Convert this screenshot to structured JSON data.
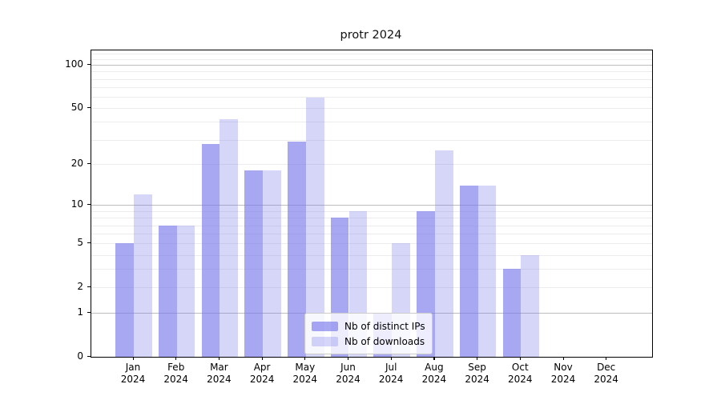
{
  "chart_data": {
    "type": "bar",
    "title": "protr 2024",
    "categories": [
      "Jan 2024",
      "Feb 2024",
      "Mar 2024",
      "Apr 2024",
      "May 2024",
      "Jun 2024",
      "Jul 2024",
      "Aug 2024",
      "Sep 2024",
      "Oct 2024",
      "Nov 2024",
      "Dec 2024"
    ],
    "x_tick_months": [
      "Jan",
      "Feb",
      "Mar",
      "Apr",
      "May",
      "Jun",
      "Jul",
      "Aug",
      "Sep",
      "Oct",
      "Nov",
      "Dec"
    ],
    "x_tick_year": "2024",
    "series": [
      {
        "name": "Nb of distinct IPs",
        "color": "rgba(120,120,235,0.65)",
        "values": [
          5,
          7,
          28,
          18,
          29,
          8,
          1,
          9,
          14,
          3,
          0,
          0
        ]
      },
      {
        "name": "Nb of downloads",
        "color": "rgba(120,120,235,0.30)",
        "values": [
          12,
          7,
          42,
          18,
          59,
          9,
          5,
          25,
          14,
          4,
          0,
          0
        ]
      }
    ],
    "y_axis": {
      "scale": "log1p",
      "tick_values": [
        100,
        50,
        20,
        10,
        5,
        2,
        1,
        0
      ],
      "tick_labels": [
        "100",
        "50",
        "20",
        "10",
        "5",
        "2",
        "1",
        "0"
      ],
      "max_value": 126,
      "major_grid_values": [
        1,
        10,
        100
      ],
      "minor_grid_values": [
        2,
        3,
        4,
        5,
        6,
        7,
        8,
        9,
        20,
        30,
        40,
        50,
        60,
        70,
        80,
        90,
        110,
        120
      ]
    },
    "legend": {
      "position": "lower center"
    },
    "grid": true,
    "xlabel": "",
    "ylabel": ""
  },
  "colors": {
    "bar_base": "#7878eb",
    "major_grid": "#bdbdbd",
    "minor_grid": "#ececec",
    "spine": "#000000",
    "text": "#000000",
    "legend_border": "#cccccc",
    "legend_bg": "rgba(255,255,255,0.8)"
  }
}
